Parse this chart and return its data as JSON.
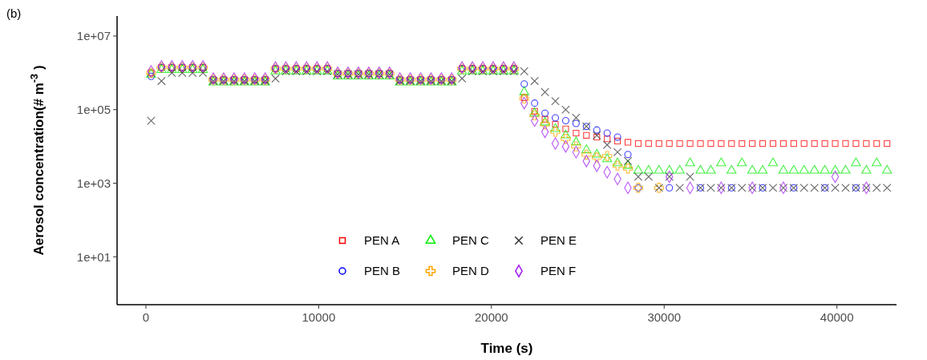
{
  "chart_data": {
    "type": "scatter",
    "title": "(b)",
    "xlabel": "Time (s)",
    "ylabel": "Aerosol concentration(# m$^{-3}$ )",
    "x": [
      300,
      900,
      1500,
      2100,
      2700,
      3300,
      3900,
      4500,
      5100,
      5700,
      6300,
      6900,
      7500,
      8100,
      8700,
      9300,
      9900,
      10500,
      11100,
      11700,
      12300,
      12900,
      13500,
      14100,
      14700,
      15300,
      15900,
      16500,
      17100,
      17700,
      18300,
      18900,
      19500,
      20100,
      20700,
      21300,
      21900,
      22500,
      23100,
      23700,
      24300,
      24900,
      25500,
      26100,
      26700,
      27300,
      27900,
      28500,
      29100,
      29700,
      30300,
      30900,
      31500,
      32100,
      32700,
      33300,
      33900,
      34500,
      35100,
      35700,
      36300,
      36900,
      37500,
      38100,
      38700,
      39300,
      39900,
      40500,
      41100,
      41700,
      42300,
      42900
    ],
    "xlim": [
      -1670,
      43450
    ],
    "xticks": [
      0,
      10000,
      20000,
      30000,
      40000
    ],
    "ylim": [
      0.5,
      35000000
    ],
    "yticks": [
      {
        "value": 10,
        "label": "1e+01"
      },
      {
        "value": 1000,
        "label": "1e+03"
      },
      {
        "value": 100000,
        "label": "1e+05"
      },
      {
        "value": 10000000,
        "label": "1e+07"
      }
    ],
    "log": "y",
    "grid": false,
    "legend": "bottom",
    "series": [
      {
        "name": "PEN A",
        "color": "#ff0000",
        "marker": "square",
        "values": [
          1000000,
          1400000,
          1400000,
          1400000,
          1400000,
          1400000,
          650000,
          650000,
          650000,
          650000,
          650000,
          650000,
          1300000,
          1300000,
          1300000,
          1300000,
          1300000,
          1300000,
          950000,
          950000,
          950000,
          950000,
          950000,
          950000,
          650000,
          650000,
          650000,
          650000,
          650000,
          650000,
          1300000,
          1300000,
          1300000,
          1300000,
          1300000,
          1300000,
          210000,
          90000,
          55000,
          40000,
          30000,
          23000,
          20000,
          18000,
          16000,
          14000,
          13000,
          12000,
          12000,
          12000,
          12000,
          12000,
          12000,
          12000,
          12000,
          12000,
          12000,
          12000,
          12000,
          12000,
          12000,
          12000,
          12000,
          12000,
          12000,
          12000,
          12000,
          12000,
          12000,
          12000,
          12000,
          12000
        ]
      },
      {
        "name": "PEN B",
        "color": "#0000ff",
        "marker": "circle",
        "values": [
          800000,
          1400000,
          1400000,
          1400000,
          1400000,
          1400000,
          650000,
          650000,
          650000,
          650000,
          650000,
          650000,
          1300000,
          1300000,
          1300000,
          1300000,
          1300000,
          1300000,
          950000,
          950000,
          950000,
          950000,
          950000,
          950000,
          650000,
          650000,
          650000,
          650000,
          650000,
          650000,
          1300000,
          1300000,
          1300000,
          1300000,
          1300000,
          1300000,
          500000,
          150000,
          80000,
          60000,
          50000,
          42000,
          35000,
          28000,
          23000,
          18000,
          6000,
          750,
          null,
          null,
          750,
          null,
          null,
          750,
          null,
          null,
          750,
          null,
          null,
          750,
          null,
          null,
          750,
          null,
          null,
          750,
          null,
          null,
          750,
          null,
          null,
          null
        ]
      },
      {
        "name": "PEN C",
        "color": "#00ee00",
        "marker": "triangle",
        "values": [
          900000,
          1200000,
          1200000,
          1200000,
          1200000,
          1200000,
          550000,
          550000,
          550000,
          550000,
          550000,
          550000,
          1100000,
          1100000,
          1100000,
          1100000,
          1100000,
          1100000,
          800000,
          800000,
          800000,
          800000,
          800000,
          800000,
          550000,
          550000,
          550000,
          550000,
          550000,
          550000,
          1100000,
          1100000,
          1100000,
          1100000,
          1100000,
          1100000,
          300000,
          80000,
          45000,
          30000,
          20000,
          13000,
          8000,
          6000,
          4500,
          3500,
          3000,
          2200,
          2200,
          2200,
          2200,
          2200,
          3500,
          2200,
          2200,
          3500,
          2200,
          3500,
          2200,
          2200,
          3500,
          2200,
          2200,
          2200,
          2200,
          2200,
          2200,
          2200,
          3500,
          2200,
          3500,
          2200
        ]
      },
      {
        "name": "PEN D",
        "color": "#ffa500",
        "marker": "cross",
        "values": [
          1000000,
          1400000,
          1400000,
          1400000,
          1400000,
          1400000,
          650000,
          650000,
          650000,
          650000,
          650000,
          650000,
          1300000,
          1300000,
          1300000,
          1300000,
          1300000,
          1300000,
          950000,
          950000,
          950000,
          950000,
          950000,
          950000,
          650000,
          650000,
          650000,
          650000,
          650000,
          650000,
          1300000,
          1300000,
          1300000,
          1300000,
          1300000,
          1300000,
          200000,
          70000,
          40000,
          25000,
          16000,
          10000,
          6000,
          5000,
          5500,
          3000,
          2500,
          750,
          null,
          750,
          null,
          null,
          null,
          null,
          null,
          null,
          null,
          null,
          null,
          null,
          null,
          null,
          null,
          null,
          null,
          null,
          null,
          null,
          null,
          null,
          null,
          null
        ]
      },
      {
        "name": "PEN E",
        "color": "#333333",
        "marker": "x",
        "values": [
          50000,
          600000,
          1000000,
          1000000,
          1000000,
          1000000,
          600000,
          600000,
          600000,
          600000,
          600000,
          600000,
          700000,
          1100000,
          1100000,
          1100000,
          1100000,
          1100000,
          900000,
          900000,
          900000,
          900000,
          900000,
          900000,
          600000,
          600000,
          600000,
          600000,
          600000,
          600000,
          700000,
          1100000,
          1100000,
          1100000,
          1100000,
          1100000,
          1100000,
          600000,
          300000,
          170000,
          100000,
          60000,
          35000,
          20000,
          11000,
          7000,
          4000,
          1500,
          1500,
          750,
          1500,
          750,
          1500,
          750,
          750,
          750,
          750,
          750,
          750,
          750,
          750,
          750,
          750,
          750,
          750,
          750,
          750,
          750,
          750,
          750,
          750,
          750
        ]
      },
      {
        "name": "PEN F",
        "color": "#a020f0",
        "marker": "diamond",
        "values": [
          1100000,
          1500000,
          1500000,
          1500000,
          1500000,
          1500000,
          700000,
          700000,
          700000,
          700000,
          700000,
          700000,
          1400000,
          1400000,
          1400000,
          1400000,
          1400000,
          1400000,
          1000000,
          1000000,
          1000000,
          1000000,
          1000000,
          1000000,
          700000,
          700000,
          700000,
          700000,
          700000,
          700000,
          1400000,
          1400000,
          1400000,
          1400000,
          1400000,
          1400000,
          150000,
          50000,
          25000,
          12000,
          10000,
          7000,
          4000,
          3000,
          2000,
          1300,
          750,
          null,
          null,
          null,
          1500,
          null,
          750,
          null,
          null,
          750,
          null,
          null,
          750,
          null,
          null,
          750,
          null,
          null,
          null,
          null,
          1500,
          null,
          null,
          750,
          null,
          null
        ]
      }
    ]
  }
}
